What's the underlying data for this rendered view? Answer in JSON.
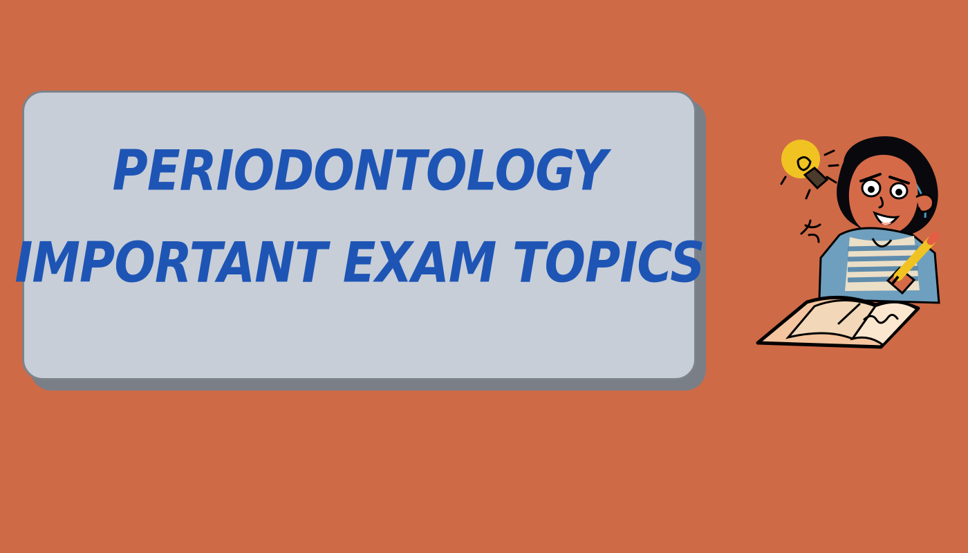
{
  "banner": {
    "title_line_1": "PERIODONTOLOGY",
    "title_line_2": "IMPORTANT EXAM TOPICS"
  },
  "illustration": {
    "name": "student-writing-with-lightbulb",
    "icon": "lightbulb-icon"
  },
  "colors": {
    "background": "#cf6a46",
    "banner": "#c7ced8",
    "banner_shadow": "#7a7f87",
    "title": "#1e55b5",
    "lightbulb": "#f0c322"
  }
}
